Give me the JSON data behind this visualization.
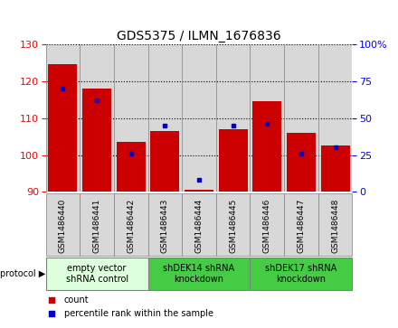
{
  "title": "GDS5375 / ILMN_1676836",
  "samples": [
    "GSM1486440",
    "GSM1486441",
    "GSM1486442",
    "GSM1486443",
    "GSM1486444",
    "GSM1486445",
    "GSM1486446",
    "GSM1486447",
    "GSM1486448"
  ],
  "counts": [
    124.5,
    118.0,
    103.5,
    106.5,
    90.5,
    107.0,
    114.5,
    106.0,
    102.5
  ],
  "percentile_ranks": [
    70,
    62,
    26,
    45,
    8,
    45,
    46,
    26,
    30
  ],
  "ylim_left": [
    90,
    130
  ],
  "ylim_right": [
    0,
    100
  ],
  "yticks_left": [
    90,
    100,
    110,
    120,
    130
  ],
  "yticks_right": [
    0,
    25,
    50,
    75,
    100
  ],
  "bar_color": "#cc0000",
  "dot_color": "#0000cc",
  "background_color": "#ffffff",
  "plot_bg_color": "#d8d8d8",
  "label_bg_color": "#d8d8d8",
  "protocol_groups": [
    {
      "label": "empty vector\nshRNA control",
      "start": 0,
      "end": 2,
      "color": "#ddffdd"
    },
    {
      "label": "shDEK14 shRNA\nknockdown",
      "start": 3,
      "end": 5,
      "color": "#44cc44"
    },
    {
      "label": "shDEK17 shRNA\nknockdown",
      "start": 6,
      "end": 8,
      "color": "#44cc44"
    }
  ],
  "legend_count_label": "count",
  "legend_pct_label": "percentile rank within the sample",
  "protocol_label": "protocol",
  "title_fontsize": 10,
  "axis_label_fontsize": 8,
  "tick_fontsize": 8,
  "sample_fontsize": 6.5,
  "protocol_fontsize": 7,
  "legend_fontsize": 7
}
